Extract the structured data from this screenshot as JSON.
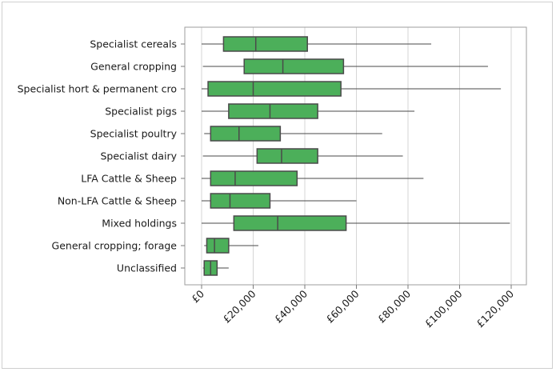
{
  "chart_data": {
    "type": "boxplot",
    "orientation": "horizontal",
    "title": "",
    "xlabel": "",
    "ylabel": "",
    "xlim": [
      0,
      125000
    ],
    "x_ticks": [
      0,
      20000,
      40000,
      60000,
      80000,
      100000,
      120000
    ],
    "x_tick_labels": [
      "£0",
      "£20,000",
      "£40,000",
      "£60,000",
      "£80,000",
      "£100,000",
      "£120,000"
    ],
    "grid": "vertical",
    "box_color": "#4caf5a",
    "box_stroke": "#4a4a4a",
    "categories": [
      "Specialist cereals",
      "General cropping",
      "Specialist hort & permanent cro",
      "Specialist pigs",
      "Specialist poultry",
      "Specialist dairy",
      "LFA Cattle & Sheep",
      "Non-LFA Cattle & Sheep",
      "Mixed holdings",
      "General cropping; forage",
      "Unclassified"
    ],
    "boxes": [
      {
        "min": 0,
        "q1": 8500,
        "median": 21000,
        "q3": 41000,
        "max": 89000
      },
      {
        "min": 500,
        "q1": 16500,
        "median": 31500,
        "q3": 55000,
        "max": 111000
      },
      {
        "min": 0,
        "q1": 2500,
        "median": 20000,
        "q3": 54000,
        "max": 116000
      },
      {
        "min": 0,
        "q1": 10500,
        "median": 26500,
        "q3": 45000,
        "max": 82500
      },
      {
        "min": 1000,
        "q1": 3500,
        "median": 14500,
        "q3": 30500,
        "max": 70000
      },
      {
        "min": 500,
        "q1": 21500,
        "median": 31000,
        "q3": 45000,
        "max": 78000
      },
      {
        "min": 0,
        "q1": 3500,
        "median": 13000,
        "q3": 37000,
        "max": 86000
      },
      {
        "min": 0,
        "q1": 3500,
        "median": 11000,
        "q3": 26500,
        "max": 60000
      },
      {
        "min": 0,
        "q1": 12500,
        "median": 29500,
        "q3": 56000,
        "max": 119500
      },
      {
        "min": 1000,
        "q1": 2000,
        "median": 5000,
        "q3": 10500,
        "max": 22000
      },
      {
        "min": 500,
        "q1": 1000,
        "median": 3500,
        "q3": 6000,
        "max": 10500
      }
    ]
  }
}
